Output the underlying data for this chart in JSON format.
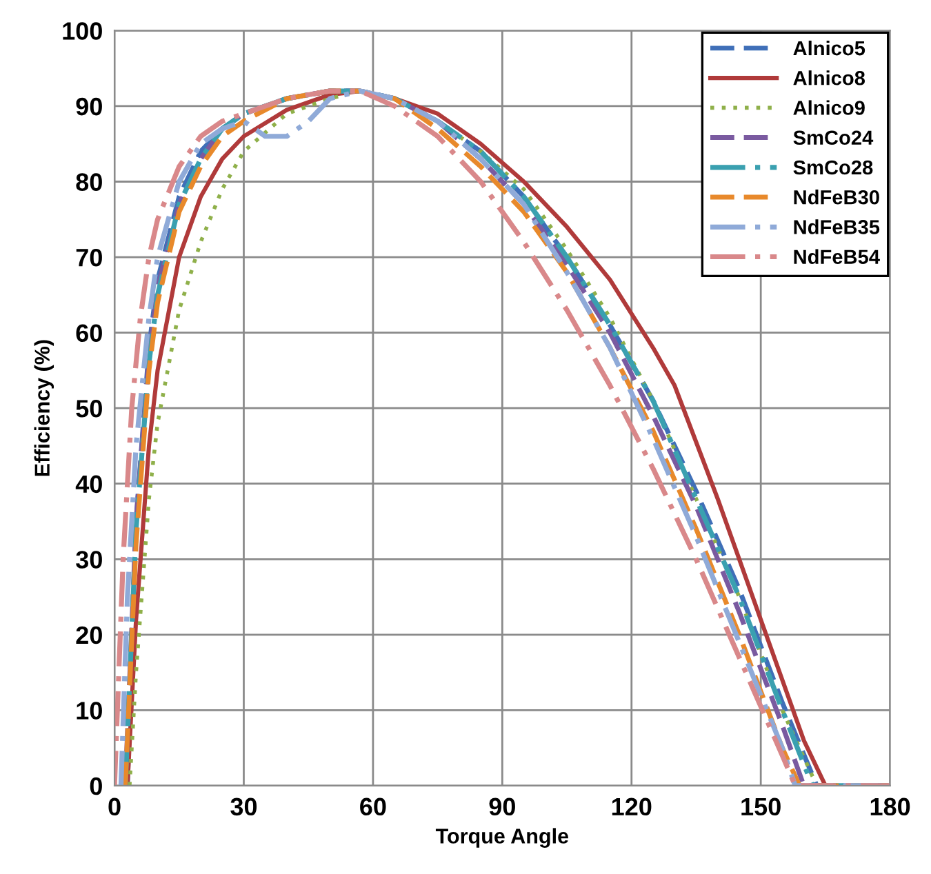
{
  "chart_data": {
    "type": "line",
    "xlabel": "Torque Angle",
    "ylabel": "Efficiency (%)",
    "xlim": [
      0,
      180
    ],
    "xticks": [
      0,
      30,
      60,
      90,
      120,
      150,
      180
    ],
    "ylim": [
      0,
      100
    ],
    "yticks": [
      0,
      10,
      20,
      30,
      40,
      50,
      60,
      70,
      80,
      90,
      100
    ],
    "grid": true,
    "legend": "top right",
    "marker": "none",
    "series": [
      {
        "name": "Alnico5",
        "color": "#3f6fb8",
        "line_style": "dashed",
        "x": [
          3,
          5,
          8,
          10,
          15,
          20,
          25,
          30,
          40,
          50,
          57,
          65,
          75,
          85,
          95,
          105,
          115,
          125,
          135,
          145,
          155,
          163,
          170,
          180
        ],
        "values": [
          0,
          35,
          58,
          67,
          78,
          84,
          87,
          89,
          91,
          92,
          92,
          91,
          88,
          84,
          78,
          70,
          61,
          51,
          39,
          26,
          11,
          0,
          0,
          0
        ]
      },
      {
        "name": "Alnico8",
        "color": "#b03a3a",
        "line_style": "solid",
        "x": [
          3,
          5,
          8,
          10,
          15,
          20,
          25,
          30,
          40,
          50,
          57,
          65,
          75,
          85,
          95,
          105,
          115,
          125,
          130,
          140,
          150,
          160,
          165,
          170,
          180
        ],
        "values": [
          0,
          22,
          45,
          55,
          70,
          78,
          83,
          86,
          89.5,
          91.5,
          92,
          91,
          89,
          85,
          80,
          74,
          67,
          58,
          53,
          38,
          22,
          6,
          0,
          0,
          0
        ]
      },
      {
        "name": "Alnico9",
        "color": "#8fb04a",
        "line_style": "dotted",
        "x": [
          3.5,
          5,
          8,
          10,
          15,
          20,
          25,
          30,
          40,
          45,
          50,
          57,
          65,
          75,
          85,
          95,
          105,
          115,
          125,
          135,
          145,
          155,
          163,
          170,
          180
        ],
        "values": [
          0,
          15,
          38,
          48,
          63,
          72,
          79,
          84,
          89,
          90,
          91,
          92,
          91,
          88,
          84,
          79,
          71,
          62,
          51,
          38,
          25,
          10,
          0,
          0,
          0
        ]
      },
      {
        "name": "SmCo24",
        "color": "#7a5aa0",
        "line_style": "dashed",
        "x": [
          2.5,
          5,
          8,
          10,
          15,
          20,
          25,
          30,
          40,
          50,
          57,
          65,
          75,
          85,
          95,
          105,
          115,
          125,
          135,
          145,
          155,
          160,
          170,
          180
        ],
        "values": [
          0,
          35,
          57,
          66,
          77,
          83,
          87,
          89,
          91,
          92,
          92,
          91,
          88,
          83,
          77,
          69,
          60,
          49,
          37,
          23,
          8,
          0,
          0,
          0
        ]
      },
      {
        "name": "SmCo28",
        "color": "#3aa0b0",
        "line_style": "dashdot",
        "x": [
          2.5,
          5,
          8,
          10,
          15,
          20,
          25,
          30,
          40,
          50,
          57,
          65,
          75,
          85,
          95,
          105,
          115,
          125,
          135,
          145,
          155,
          162,
          170,
          180
        ],
        "values": [
          0,
          34,
          56,
          65,
          77,
          83,
          87,
          89,
          91,
          92,
          92,
          91,
          88,
          84,
          78,
          70,
          61,
          51,
          38,
          25,
          10,
          0,
          0,
          0
        ]
      },
      {
        "name": "NdFeB30",
        "color": "#e8892b",
        "line_style": "dashed",
        "x": [
          2.5,
          5,
          8,
          10,
          15,
          20,
          25,
          30,
          40,
          50,
          57,
          65,
          75,
          85,
          95,
          105,
          115,
          125,
          135,
          145,
          155,
          159,
          170,
          180
        ],
        "values": [
          0,
          32,
          55,
          64,
          76,
          82,
          86,
          88,
          91,
          92,
          92,
          91,
          87,
          82,
          76,
          68,
          58,
          47,
          34,
          20,
          5,
          0,
          0,
          0
        ]
      },
      {
        "name": "NdFeB35",
        "color": "#8faad8",
        "line_style": "dashdot",
        "x": [
          1.5,
          3,
          5,
          8,
          10,
          15,
          20,
          25,
          30,
          35,
          40,
          45,
          50,
          57,
          65,
          75,
          85,
          95,
          105,
          115,
          125,
          135,
          145,
          155,
          158,
          170,
          180
        ],
        "values": [
          0,
          25,
          45,
          62,
          70,
          80,
          85,
          87,
          88,
          86,
          86,
          88,
          91,
          92,
          91,
          88,
          83,
          77,
          68,
          58,
          46,
          33,
          19,
          5,
          0,
          0,
          0
        ]
      },
      {
        "name": "NdFeB54",
        "color": "#d9888a",
        "line_style": "dashdot",
        "x": [
          0,
          2,
          4,
          6,
          8,
          10,
          15,
          20,
          25,
          30,
          40,
          50,
          57,
          65,
          75,
          85,
          95,
          105,
          115,
          125,
          135,
          145,
          155,
          158,
          170,
          180
        ],
        "values": [
          0,
          30,
          50,
          62,
          70,
          75,
          82,
          86,
          88,
          89,
          91,
          92,
          92,
          90,
          86,
          80,
          72,
          63,
          53,
          42,
          30,
          17,
          4,
          0,
          0,
          0
        ]
      }
    ]
  }
}
